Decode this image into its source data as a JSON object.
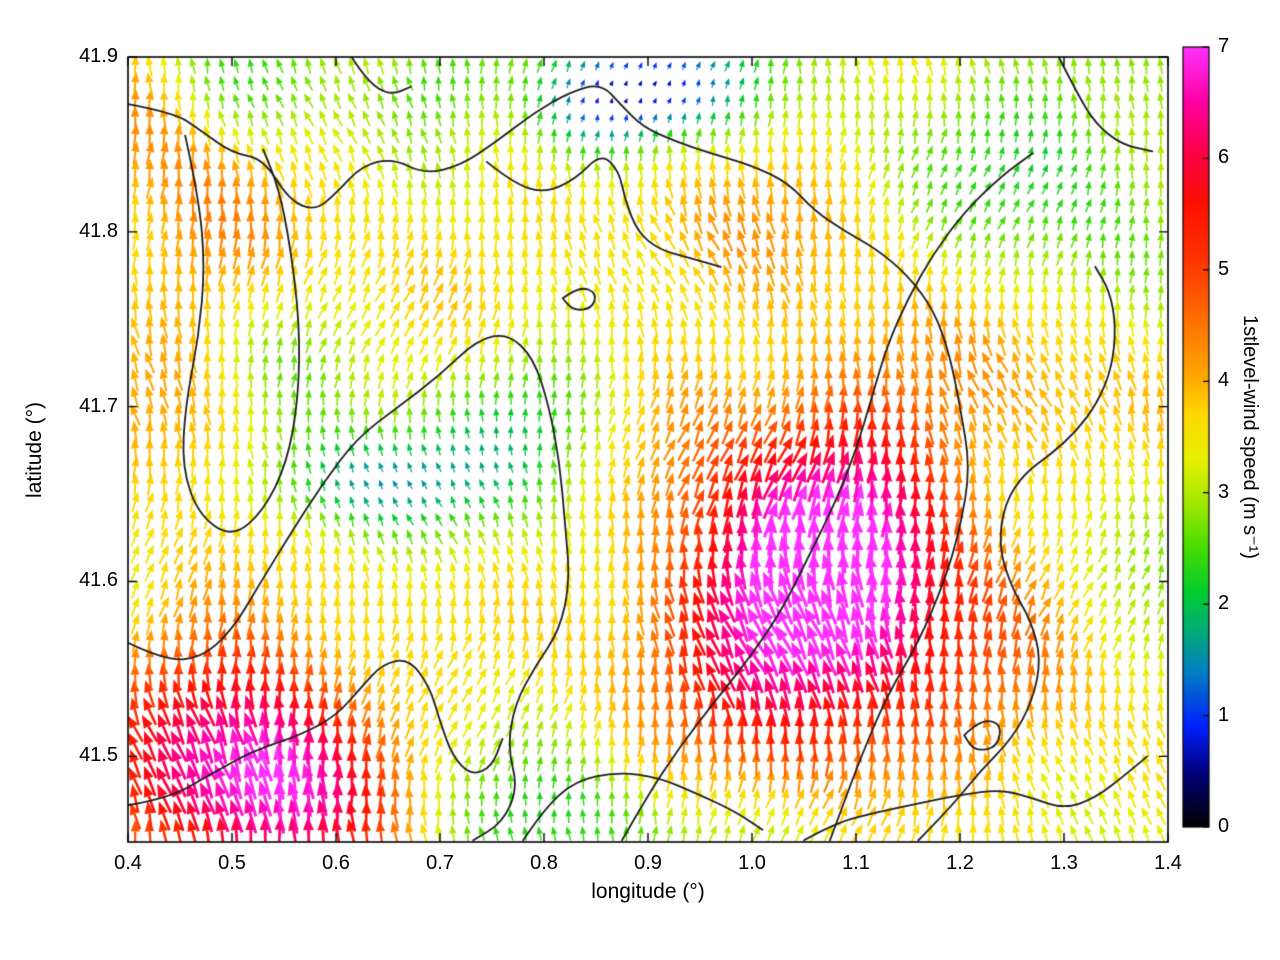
{
  "chart_data": {
    "type": "scatter",
    "variant": "quiver-vector-field-with-contours",
    "title": "",
    "xlabel": "longitude (°)",
    "ylabel": "latitude (°)",
    "xlim": [
      0.4,
      1.4
    ],
    "ylim": [
      41.451,
      41.9
    ],
    "x_ticks": [
      "0.4",
      "0.5",
      "0.6",
      "0.7",
      "0.8",
      "0.9",
      "1.0",
      "1.1",
      "1.2",
      "1.3",
      "1.4"
    ],
    "y_ticks": [
      "41.9",
      "41.8",
      "41.7",
      "41.6",
      "41.5"
    ],
    "grid": "off",
    "colorbar": {
      "label": "1stlevel-wind speed (m s⁻¹)",
      "min": 0,
      "max": 7,
      "ticks": [
        "0",
        "1",
        "2",
        "3",
        "4",
        "5",
        "6",
        "7"
      ],
      "stops": [
        [
          0.0,
          "#000000"
        ],
        [
          0.5,
          "#000080"
        ],
        [
          0.9,
          "#0020ff"
        ],
        [
          1.4,
          "#0080c0"
        ],
        [
          1.8,
          "#00b070"
        ],
        [
          2.1,
          "#00cc30"
        ],
        [
          2.5,
          "#44dd00"
        ],
        [
          2.9,
          "#a0e800"
        ],
        [
          3.3,
          "#e8f000"
        ],
        [
          3.7,
          "#ffd800"
        ],
        [
          4.1,
          "#ffa000"
        ],
        [
          4.6,
          "#ff6a00"
        ],
        [
          5.1,
          "#ff3300"
        ],
        [
          5.6,
          "#ff0f00"
        ],
        [
          6.1,
          "#ff0050"
        ],
        [
          6.5,
          "#ff00a0"
        ],
        [
          7.0,
          "#ff30ff"
        ]
      ]
    },
    "field": {
      "grid": {
        "nx": 72,
        "ny": 45
      },
      "base_speed": 3.25,
      "noise_amp": 0.5,
      "dir_base_deg": 90,
      "dir_wobble_deg": 26,
      "dir_jitter_deg": 9,
      "bumps": [
        {
          "x": 0.53,
          "y": 41.505,
          "sx": 0.075,
          "sy": 0.05,
          "a": 2.9
        },
        {
          "x": 0.6,
          "y": 41.465,
          "sx": 0.1,
          "sy": 0.035,
          "a": 1.6
        },
        {
          "x": 0.41,
          "y": 41.47,
          "sx": 0.05,
          "sy": 0.04,
          "a": 1.2
        },
        {
          "x": 1.07,
          "y": 41.6,
          "sx": 0.085,
          "sy": 0.055,
          "a": 2.9
        },
        {
          "x": 1.15,
          "y": 41.53,
          "sx": 0.13,
          "sy": 0.07,
          "a": 1.2
        },
        {
          "x": 1.0,
          "y": 41.57,
          "sx": 0.08,
          "sy": 0.05,
          "a": 1.2
        },
        {
          "x": 1.12,
          "y": 41.68,
          "sx": 0.07,
          "sy": 0.05,
          "a": 1.1
        },
        {
          "x": 1.33,
          "y": 41.7,
          "sx": 0.08,
          "sy": 0.06,
          "a": 0.7
        },
        {
          "x": 0.97,
          "y": 41.66,
          "sx": 0.12,
          "sy": 0.07,
          "a": 0.6
        },
        {
          "x": 0.45,
          "y": 41.7,
          "sx": 0.06,
          "sy": 0.13,
          "a": 0.7
        },
        {
          "x": 0.55,
          "y": 41.8,
          "sx": 0.1,
          "sy": 0.05,
          "a": 0.4
        },
        {
          "x": 0.85,
          "y": 41.8,
          "sx": 0.1,
          "sy": 0.04,
          "a": 0.5
        },
        {
          "x": 1.02,
          "y": 41.81,
          "sx": 0.09,
          "sy": 0.04,
          "a": 0.4
        },
        {
          "x": 0.41,
          "y": 41.87,
          "sx": 0.05,
          "sy": 0.03,
          "a": 0.7
        },
        {
          "x": 0.86,
          "y": 41.875,
          "sx": 0.05,
          "sy": 0.025,
          "a": -2.9
        },
        {
          "x": 0.63,
          "y": 41.655,
          "sx": 0.09,
          "sy": 0.022,
          "a": -1.7
        },
        {
          "x": 0.8,
          "y": 41.695,
          "sx": 0.06,
          "sy": 0.03,
          "a": -1.3
        },
        {
          "x": 1.3,
          "y": 41.84,
          "sx": 0.09,
          "sy": 0.05,
          "a": -1.1
        },
        {
          "x": 0.52,
          "y": 41.885,
          "sx": 0.06,
          "sy": 0.025,
          "a": -0.9
        },
        {
          "x": 0.75,
          "y": 41.46,
          "sx": 0.12,
          "sy": 0.03,
          "a": -1.2
        },
        {
          "x": 1.1,
          "y": 41.462,
          "sx": 0.08,
          "sy": 0.025,
          "a": -0.8
        },
        {
          "x": 1.36,
          "y": 41.63,
          "sx": 0.05,
          "sy": 0.05,
          "a": -0.7
        },
        {
          "x": 0.95,
          "y": 41.885,
          "sx": 0.05,
          "sy": 0.02,
          "a": -1.4
        },
        {
          "x": 0.7,
          "y": 41.89,
          "sx": 0.04,
          "sy": 0.02,
          "a": -1.0
        },
        {
          "x": 0.57,
          "y": 41.73,
          "sx": 0.05,
          "sy": 0.03,
          "a": -0.5
        }
      ]
    },
    "contours": [
      [
        [
          0.4,
          41.873
        ],
        [
          0.445,
          41.868
        ],
        [
          0.47,
          41.858
        ],
        [
          0.5,
          41.845
        ],
        [
          0.53,
          41.842
        ],
        [
          0.555,
          41.818
        ],
        [
          0.58,
          41.812
        ],
        [
          0.6,
          41.822
        ],
        [
          0.625,
          41.838
        ],
        [
          0.655,
          41.842
        ],
        [
          0.685,
          41.833
        ],
        [
          0.72,
          41.838
        ],
        [
          0.755,
          41.852
        ],
        [
          0.79,
          41.868
        ],
        [
          0.825,
          41.88
        ],
        [
          0.855,
          41.885
        ],
        [
          0.875,
          41.872
        ],
        [
          0.895,
          41.86
        ],
        [
          0.925,
          41.852
        ],
        [
          0.96,
          41.845
        ],
        [
          1.0,
          41.838
        ],
        [
          1.035,
          41.828
        ],
        [
          1.06,
          41.812
        ],
        [
          1.09,
          41.8
        ],
        [
          1.12,
          41.79
        ],
        [
          1.15,
          41.775
        ],
        [
          1.175,
          41.755
        ],
        [
          1.19,
          41.73
        ],
        [
          1.2,
          41.7
        ],
        [
          1.21,
          41.665
        ],
        [
          1.2,
          41.63
        ],
        [
          1.185,
          41.6
        ],
        [
          1.16,
          41.565
        ],
        [
          1.13,
          41.535
        ],
        [
          1.105,
          41.5
        ],
        [
          1.085,
          41.468
        ],
        [
          1.075,
          41.452
        ]
      ],
      [
        [
          0.455,
          41.855
        ],
        [
          0.468,
          41.82
        ],
        [
          0.474,
          41.78
        ],
        [
          0.468,
          41.74
        ],
        [
          0.455,
          41.7
        ],
        [
          0.452,
          41.665
        ],
        [
          0.468,
          41.638
        ],
        [
          0.5,
          41.625
        ],
        [
          0.53,
          41.64
        ],
        [
          0.553,
          41.668
        ],
        [
          0.564,
          41.705
        ],
        [
          0.565,
          41.748
        ],
        [
          0.556,
          41.792
        ],
        [
          0.545,
          41.825
        ],
        [
          0.53,
          41.847
        ]
      ],
      [
        [
          0.4,
          41.565
        ],
        [
          0.435,
          41.555
        ],
        [
          0.47,
          41.556
        ],
        [
          0.5,
          41.572
        ],
        [
          0.528,
          41.6
        ],
        [
          0.556,
          41.627
        ],
        [
          0.586,
          41.655
        ],
        [
          0.62,
          41.682
        ],
        [
          0.66,
          41.7
        ],
        [
          0.7,
          41.718
        ],
        [
          0.735,
          41.738
        ],
        [
          0.765,
          41.742
        ],
        [
          0.79,
          41.728
        ],
        [
          0.805,
          41.7
        ],
        [
          0.815,
          41.668
        ],
        [
          0.82,
          41.635
        ],
        [
          0.825,
          41.6
        ],
        [
          0.815,
          41.572
        ],
        [
          0.792,
          41.552
        ],
        [
          0.772,
          41.53
        ],
        [
          0.765,
          41.505
        ],
        [
          0.775,
          41.482
        ],
        [
          0.76,
          41.462
        ],
        [
          0.732,
          41.452
        ]
      ],
      [
        [
          0.875,
          41.452
        ],
        [
          0.9,
          41.478
        ],
        [
          0.93,
          41.505
        ],
        [
          0.965,
          41.532
        ],
        [
          1.0,
          41.558
        ],
        [
          1.03,
          41.585
        ],
        [
          1.055,
          41.615
        ],
        [
          1.08,
          41.645
        ],
        [
          1.1,
          41.675
        ],
        [
          1.115,
          41.705
        ],
        [
          1.13,
          41.735
        ],
        [
          1.15,
          41.762
        ],
        [
          1.175,
          41.788
        ],
        [
          1.205,
          41.812
        ],
        [
          1.24,
          41.832
        ],
        [
          1.27,
          41.845
        ]
      ],
      [
        [
          0.4,
          41.472
        ],
        [
          0.44,
          41.476
        ],
        [
          0.48,
          41.49
        ],
        [
          0.52,
          41.503
        ],
        [
          0.565,
          41.512
        ],
        [
          0.6,
          41.523
        ],
        [
          0.625,
          41.54
        ],
        [
          0.645,
          41.553
        ],
        [
          0.67,
          41.556
        ],
        [
          0.69,
          41.54
        ],
        [
          0.7,
          41.52
        ],
        [
          0.712,
          41.5
        ],
        [
          0.73,
          41.489
        ],
        [
          0.75,
          41.494
        ],
        [
          0.76,
          41.51
        ]
      ],
      [
        [
          0.78,
          41.452
        ],
        [
          0.8,
          41.47
        ],
        [
          0.83,
          41.486
        ],
        [
          0.87,
          41.491
        ],
        [
          0.91,
          41.488
        ],
        [
          0.95,
          41.478
        ],
        [
          0.985,
          41.468
        ],
        [
          1.01,
          41.458
        ]
      ],
      [
        [
          1.16,
          41.452
        ],
        [
          1.19,
          41.47
        ],
        [
          1.22,
          41.492
        ],
        [
          1.25,
          41.51
        ],
        [
          1.27,
          41.532
        ],
        [
          1.278,
          41.556
        ],
        [
          1.268,
          41.578
        ],
        [
          1.25,
          41.596
        ],
        [
          1.237,
          41.62
        ],
        [
          1.243,
          41.645
        ],
        [
          1.262,
          41.662
        ],
        [
          1.288,
          41.673
        ],
        [
          1.312,
          41.686
        ],
        [
          1.332,
          41.702
        ],
        [
          1.346,
          41.722
        ],
        [
          1.35,
          41.746
        ],
        [
          1.344,
          41.766
        ],
        [
          1.33,
          41.78
        ]
      ],
      [
        [
          0.818,
          41.762
        ],
        [
          0.834,
          41.769
        ],
        [
          0.851,
          41.765
        ],
        [
          0.846,
          41.756
        ],
        [
          0.828,
          41.755
        ],
        [
          0.818,
          41.762
        ]
      ],
      [
        [
          1.204,
          41.512
        ],
        [
          1.219,
          41.521
        ],
        [
          1.24,
          41.519
        ],
        [
          1.236,
          41.505
        ],
        [
          1.214,
          41.503
        ],
        [
          1.204,
          41.512
        ]
      ],
      [
        [
          1.05,
          41.452
        ],
        [
          1.08,
          41.462
        ],
        [
          1.12,
          41.468
        ],
        [
          1.16,
          41.473
        ],
        [
          1.2,
          41.478
        ],
        [
          1.24,
          41.481
        ],
        [
          1.27,
          41.476
        ],
        [
          1.3,
          41.47
        ],
        [
          1.33,
          41.476
        ],
        [
          1.36,
          41.49
        ],
        [
          1.38,
          41.5
        ]
      ],
      [
        [
          1.295,
          41.9
        ],
        [
          1.312,
          41.88
        ],
        [
          1.33,
          41.862
        ],
        [
          1.355,
          41.85
        ],
        [
          1.385,
          41.846
        ]
      ],
      [
        [
          0.615,
          41.9
        ],
        [
          0.63,
          41.886
        ],
        [
          0.652,
          41.878
        ],
        [
          0.672,
          41.883
        ]
      ],
      [
        [
          0.745,
          41.84
        ],
        [
          0.77,
          41.828
        ],
        [
          0.8,
          41.822
        ],
        [
          0.83,
          41.83
        ],
        [
          0.855,
          41.845
        ],
        [
          0.872,
          41.835
        ],
        [
          0.878,
          41.818
        ],
        [
          0.89,
          41.8
        ],
        [
          0.91,
          41.79
        ],
        [
          0.94,
          41.785
        ],
        [
          0.97,
          41.78
        ]
      ]
    ],
    "contour_color": "#1c1c1c",
    "frame_color": "#000000"
  }
}
